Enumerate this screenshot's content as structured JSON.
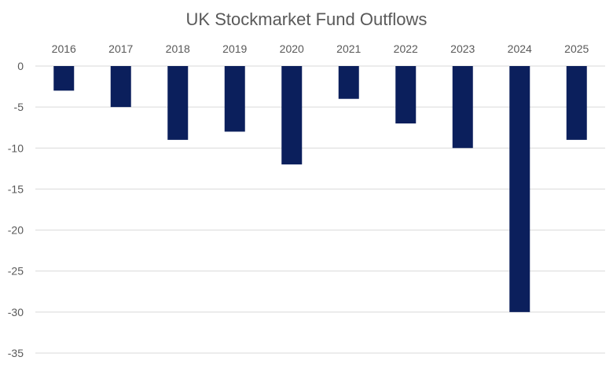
{
  "chart_data": {
    "type": "bar",
    "title": "UK Stockmarket Fund Outflows",
    "xlabel": "",
    "ylabel": "",
    "categories": [
      "2016",
      "2017",
      "2018",
      "2019",
      "2020",
      "2021",
      "2022",
      "2023",
      "2024",
      "2025"
    ],
    "series": [
      {
        "values": [
          -3,
          -5,
          -9,
          -8,
          -12,
          -4,
          -7,
          -10,
          -30,
          -9
        ]
      }
    ],
    "ylim": [
      -35,
      0
    ],
    "yticks": [
      0,
      -5,
      -10,
      -15,
      -20,
      -25,
      -30,
      -35
    ],
    "category_axis_position": "top",
    "grid": true,
    "legend": "none",
    "colors": {
      "bar": "#0b1f5c",
      "grid": "#d9d9d9",
      "text": "#595959"
    }
  }
}
